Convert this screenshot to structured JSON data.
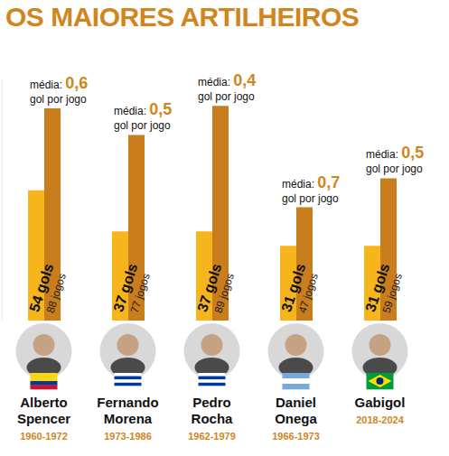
{
  "chart_data": {
    "type": "bar",
    "title": "OS MAIORES ARTILHEIROS",
    "categories": [
      "Alberto Spencer",
      "Fernando Morena",
      "Pedro Rocha",
      "Daniel Onega",
      "Gabigol"
    ],
    "periods": [
      "1960-1972",
      "1973-1986",
      "1962-1979",
      "1966-1973",
      "2018-2024"
    ],
    "series": [
      {
        "name": "gols",
        "color": "#f5b51b",
        "values": [
          54,
          37,
          37,
          31,
          31
        ],
        "value_labels": [
          "54 gols",
          "37 gols",
          "37 gols",
          "31 gols",
          "31 gols"
        ]
      },
      {
        "name": "jogos",
        "color": "#c97d1c",
        "values": [
          88,
          77,
          89,
          47,
          59
        ],
        "value_labels": [
          "88 jogos",
          "77 jogos",
          "89 jogos",
          "47 jogos",
          "59 jogos"
        ]
      }
    ],
    "averages": {
      "prefix": "média:",
      "suffix": "gol por jogo",
      "values": [
        0.6,
        0.5,
        0.4,
        0.7,
        0.5
      ],
      "value_labels": [
        "0,6",
        "0,5",
        "0,4",
        "0,7",
        "0,5"
      ]
    },
    "ylim": [
      0,
      100
    ],
    "yticks": [
      0,
      100
    ],
    "tick_labels": false,
    "data_labels": true,
    "grid": false
  }
}
